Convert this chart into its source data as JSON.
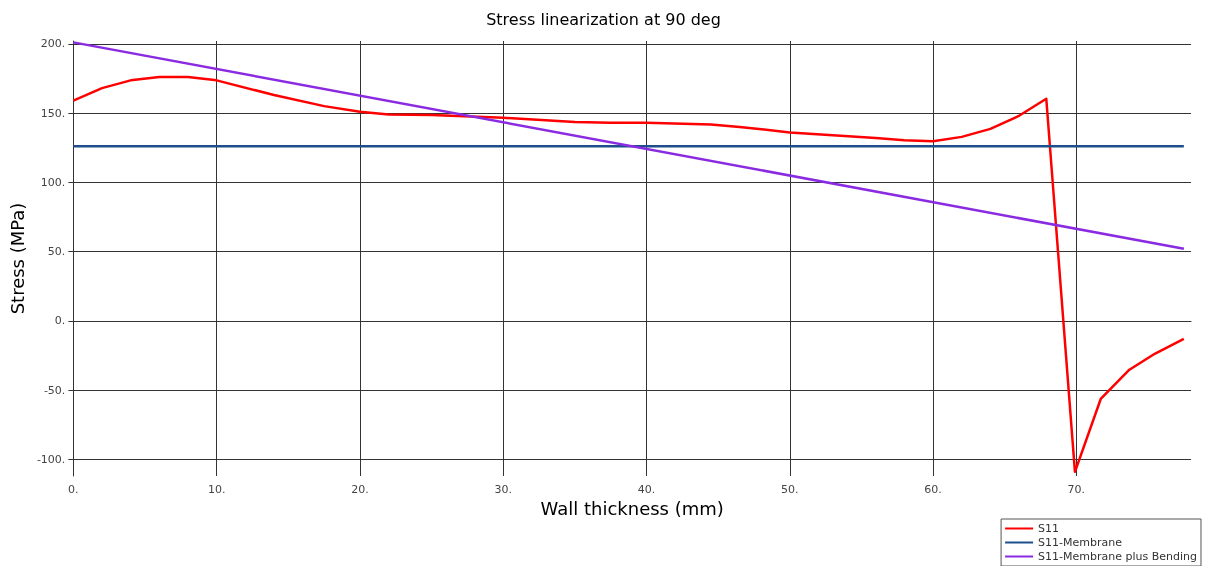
{
  "chart_data": {
    "type": "line",
    "title": "Stress linearization at 90 deg",
    "xlabel": "Wall thickness (mm)",
    "ylabel": "Stress (MPa)",
    "xlim": [
      0,
      78
    ],
    "ylim": [
      -112,
      202
    ],
    "xticks": [
      {
        "value": 0,
        "label": "0."
      },
      {
        "value": 10,
        "label": "10."
      },
      {
        "value": 20,
        "label": "20."
      },
      {
        "value": 30,
        "label": "30."
      },
      {
        "value": 40,
        "label": "40."
      },
      {
        "value": 50,
        "label": "50."
      },
      {
        "value": 60,
        "label": "60."
      },
      {
        "value": 70,
        "label": "70."
      }
    ],
    "yticks": [
      {
        "value": -100,
        "label": "-100."
      },
      {
        "value": -50,
        "label": "-50."
      },
      {
        "value": 0,
        "label": "0."
      },
      {
        "value": 50,
        "label": "50."
      },
      {
        "value": 100,
        "label": "100."
      },
      {
        "value": 150,
        "label": "150."
      },
      {
        "value": 200,
        "label": "200."
      }
    ],
    "grid": true,
    "legend": "bottom right",
    "marker": "none",
    "line_style": "solid",
    "series": [
      {
        "name": "S11",
        "color": "#ff0000",
        "x": [
          0,
          2,
          4,
          6,
          8,
          10,
          14,
          17.5,
          20,
          22,
          25,
          30,
          35,
          37.5,
          40,
          44.5,
          46.5,
          50,
          53,
          56,
          58,
          60,
          62,
          64,
          66,
          67.9,
          69.9,
          71.7,
          73.7,
          75.5,
          77.5
        ],
        "values": [
          159,
          168,
          173.6,
          176,
          176,
          173.6,
          163,
          155,
          151,
          149,
          148.6,
          146.6,
          143.5,
          143,
          143,
          141.7,
          140,
          136,
          134,
          132,
          130.3,
          129.7,
          132.8,
          138.6,
          148,
          160.3,
          -109,
          -56.4,
          -35.3,
          -23.6,
          -13
        ]
      },
      {
        "name": "S11-Membrane",
        "color": "#1f4e8c",
        "x": [
          0,
          77.5
        ],
        "values": [
          126,
          126
        ]
      },
      {
        "name": "S11-Membrane plus Bending",
        "color": "#8a2be2",
        "x": [
          0,
          77.5
        ],
        "values": [
          201,
          52
        ]
      }
    ]
  }
}
